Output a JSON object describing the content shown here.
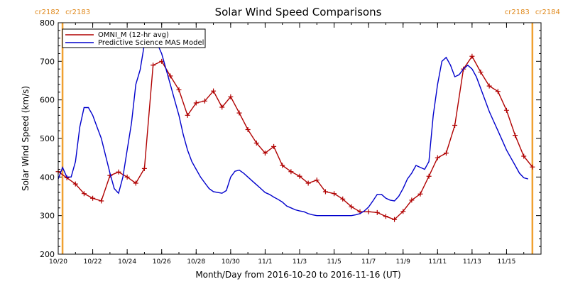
{
  "chart_data": {
    "type": "line",
    "title": "Solar Wind Speed Comparisons",
    "xlabel": "Month/Day from 2016-10-20 to 2016-11-16 (UT)",
    "ylabel": "Solar Wind Speed (km/s)",
    "xlim": [
      "2016-10-20",
      "2016-11-16"
    ],
    "ylim": [
      200,
      800
    ],
    "y_ticks": [
      200,
      300,
      400,
      500,
      600,
      700,
      800
    ],
    "x_ticks": [
      {
        "date": "2016-10-20",
        "label": "10/20"
      },
      {
        "date": "2016-10-22",
        "label": "10/22"
      },
      {
        "date": "2016-10-24",
        "label": "10/24"
      },
      {
        "date": "2016-10-26",
        "label": "10/26"
      },
      {
        "date": "2016-10-28",
        "label": "10/28"
      },
      {
        "date": "2016-10-30",
        "label": "10/30"
      },
      {
        "date": "2016-11-01",
        "label": "11/1"
      },
      {
        "date": "2016-11-03",
        "label": "11/3"
      },
      {
        "date": "2016-11-05",
        "label": "11/5"
      },
      {
        "date": "2016-11-07",
        "label": "11/7"
      },
      {
        "date": "2016-11-09",
        "label": "11/9"
      },
      {
        "date": "2016-11-11",
        "label": "11/11"
      },
      {
        "date": "2016-11-13",
        "label": "11/13"
      },
      {
        "date": "2016-11-15",
        "label": "11/15"
      }
    ],
    "carrington_markers": [
      {
        "date": "2016-10-20 06:00",
        "left_label": "cr2182",
        "right_label": "cr2183"
      },
      {
        "date": "2016-11-16 12:00",
        "left_label": "cr2183",
        "right_label": "cr2184"
      }
    ],
    "legend_position": "top-left",
    "series": [
      {
        "name": "OMNI_M (12-hr avg)",
        "color": "#b00000",
        "marker": "plus",
        "x": [
          "2016-10-20 00:00",
          "2016-10-20 12:00",
          "2016-10-21 00:00",
          "2016-10-21 12:00",
          "2016-10-22 00:00",
          "2016-10-22 12:00",
          "2016-10-23 00:00",
          "2016-10-23 12:00",
          "2016-10-24 00:00",
          "2016-10-24 12:00",
          "2016-10-25 00:00",
          "2016-10-25 12:00",
          "2016-10-26 00:00",
          "2016-10-26 12:00",
          "2016-10-27 00:00",
          "2016-10-27 12:00",
          "2016-10-28 00:00",
          "2016-10-28 12:00",
          "2016-10-29 00:00",
          "2016-10-29 12:00",
          "2016-10-30 00:00",
          "2016-10-30 12:00",
          "2016-10-31 00:00",
          "2016-10-31 12:00",
          "2016-11-01 00:00",
          "2016-11-01 12:00",
          "2016-11-02 00:00",
          "2016-11-02 12:00",
          "2016-11-03 00:00",
          "2016-11-03 12:00",
          "2016-11-04 00:00",
          "2016-11-04 12:00",
          "2016-11-05 00:00",
          "2016-11-05 12:00",
          "2016-11-06 00:00",
          "2016-11-06 12:00",
          "2016-11-07 00:00",
          "2016-11-07 12:00",
          "2016-11-08 00:00",
          "2016-11-08 12:00",
          "2016-11-09 00:00",
          "2016-11-09 12:00",
          "2016-11-10 00:00",
          "2016-11-10 12:00",
          "2016-11-11 00:00",
          "2016-11-11 12:00",
          "2016-11-12 00:00",
          "2016-11-12 12:00",
          "2016-11-13 00:00",
          "2016-11-13 12:00",
          "2016-11-14 00:00",
          "2016-11-14 12:00",
          "2016-11-15 00:00",
          "2016-11-15 12:00",
          "2016-11-16 00:00",
          "2016-11-16 12:00"
        ],
        "values": [
          414,
          398,
          382,
          357,
          345,
          338,
          404,
          413,
          400,
          384,
          422,
          690,
          700,
          662,
          626,
          560,
          592,
          597,
          623,
          581,
          608,
          566,
          523,
          488,
          462,
          479,
          430,
          414,
          402,
          384,
          392,
          362,
          357,
          343,
          323,
          310,
          310,
          308,
          298,
          290,
          311,
          340,
          356,
          402,
          450,
          462,
          534,
          680,
          713,
          672,
          636,
          622,
          573,
          508,
          454,
          426
        ]
      },
      {
        "name": "Predictive Science MAS Model",
        "color": "#0000cc",
        "x": [
          "2016-10-20 00:00",
          "2016-10-20 06:00",
          "2016-10-20 12:00",
          "2016-10-20 18:00",
          "2016-10-21 00:00",
          "2016-10-21 06:00",
          "2016-10-21 12:00",
          "2016-10-21 18:00",
          "2016-10-22 00:00",
          "2016-10-22 06:00",
          "2016-10-22 12:00",
          "2016-10-22 18:00",
          "2016-10-23 00:00",
          "2016-10-23 06:00",
          "2016-10-23 12:00",
          "2016-10-23 18:00",
          "2016-10-24 00:00",
          "2016-10-24 06:00",
          "2016-10-24 12:00",
          "2016-10-24 18:00",
          "2016-10-25 00:00",
          "2016-10-25 06:00",
          "2016-10-25 12:00",
          "2016-10-25 18:00",
          "2016-10-26 00:00",
          "2016-10-26 06:00",
          "2016-10-26 12:00",
          "2016-10-26 18:00",
          "2016-10-27 00:00",
          "2016-10-27 06:00",
          "2016-10-27 12:00",
          "2016-10-27 18:00",
          "2016-10-28 00:00",
          "2016-10-28 06:00",
          "2016-10-28 12:00",
          "2016-10-28 18:00",
          "2016-10-29 00:00",
          "2016-10-29 06:00",
          "2016-10-29 12:00",
          "2016-10-29 18:00",
          "2016-10-30 00:00",
          "2016-10-30 06:00",
          "2016-10-30 12:00",
          "2016-10-30 18:00",
          "2016-10-31 00:00",
          "2016-10-31 06:00",
          "2016-10-31 12:00",
          "2016-10-31 18:00",
          "2016-11-01 00:00",
          "2016-11-01 06:00",
          "2016-11-01 12:00",
          "2016-11-01 18:00",
          "2016-11-02 00:00",
          "2016-11-02 06:00",
          "2016-11-02 12:00",
          "2016-11-02 18:00",
          "2016-11-03 00:00",
          "2016-11-03 06:00",
          "2016-11-03 12:00",
          "2016-11-03 18:00",
          "2016-11-04 00:00",
          "2016-11-04 06:00",
          "2016-11-04 12:00",
          "2016-11-04 18:00",
          "2016-11-05 00:00",
          "2016-11-05 06:00",
          "2016-11-05 12:00",
          "2016-11-05 18:00",
          "2016-11-06 00:00",
          "2016-11-06 06:00",
          "2016-11-06 12:00",
          "2016-11-06 18:00",
          "2016-11-07 00:00",
          "2016-11-07 06:00",
          "2016-11-07 12:00",
          "2016-11-07 18:00",
          "2016-11-08 00:00",
          "2016-11-08 06:00",
          "2016-11-08 12:00",
          "2016-11-08 18:00",
          "2016-11-09 00:00",
          "2016-11-09 06:00",
          "2016-11-09 12:00",
          "2016-11-09 18:00",
          "2016-11-10 00:00",
          "2016-11-10 06:00",
          "2016-11-10 12:00",
          "2016-11-10 18:00",
          "2016-11-11 00:00",
          "2016-11-11 06:00",
          "2016-11-11 12:00",
          "2016-11-11 18:00",
          "2016-11-12 00:00",
          "2016-11-12 06:00",
          "2016-11-12 12:00",
          "2016-11-12 18:00",
          "2016-11-13 00:00",
          "2016-11-13 06:00",
          "2016-11-13 12:00",
          "2016-11-13 18:00",
          "2016-11-14 00:00",
          "2016-11-14 06:00",
          "2016-11-14 12:00",
          "2016-11-14 18:00",
          "2016-11-15 00:00",
          "2016-11-15 06:00",
          "2016-11-15 12:00",
          "2016-11-15 18:00",
          "2016-11-16 00:00",
          "2016-11-16 06:00"
        ],
        "values": [
          395,
          425,
          400,
          400,
          440,
          530,
          580,
          580,
          560,
          530,
          500,
          455,
          410,
          370,
          358,
          400,
          470,
          540,
          640,
          678,
          745,
          748,
          745,
          745,
          720,
          680,
          640,
          600,
          560,
          510,
          470,
          440,
          420,
          400,
          385,
          370,
          362,
          360,
          358,
          365,
          400,
          415,
          418,
          410,
          400,
          390,
          380,
          370,
          360,
          355,
          348,
          342,
          335,
          325,
          320,
          315,
          312,
          310,
          305,
          302,
          300,
          300,
          300,
          300,
          300,
          300,
          300,
          300,
          300,
          302,
          305,
          312,
          322,
          338,
          355,
          355,
          345,
          340,
          338,
          350,
          370,
          395,
          410,
          430,
          425,
          420,
          440,
          560,
          640,
          700,
          710,
          690,
          660,
          665,
          680,
          690,
          680,
          660,
          630,
          600,
          570,
          545,
          520,
          495,
          470,
          450,
          430,
          410,
          398,
          395
        ]
      }
    ]
  }
}
